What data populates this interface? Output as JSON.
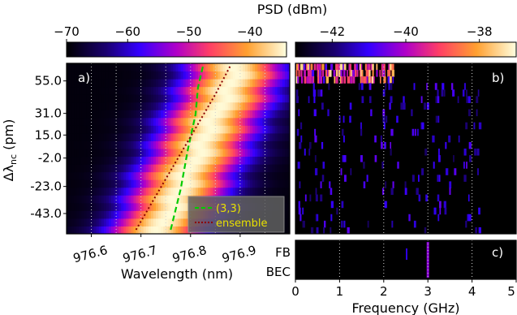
{
  "figure": {
    "colorbar_title": "PSD (dBm)",
    "ylabel": "Δλ_nc (pm)",
    "ylabel_main": "Δλ",
    "ylabel_sub": "nc",
    "ylabel_unit": " (pm)"
  },
  "chart_data": [
    {
      "panel": "a)",
      "type": "heatmap",
      "xlabel": "Wavelength (nm)",
      "ylabel": "Δλ_nc (pm)",
      "x_ticks": [
        "976.6",
        "976.7",
        "976.8",
        "976.9"
      ],
      "x_tick_values": [
        976.6,
        976.7,
        976.8,
        976.9
      ],
      "xlim": [
        976.55,
        977.0
      ],
      "y_ticks": [
        "55.0",
        "31.0",
        "15.0",
        "-2.0",
        "-23.0",
        "-43.0"
      ],
      "y_tick_values": [
        55.0,
        31.0,
        15.0,
        -2.0,
        -23.0,
        -43.0
      ],
      "ylim": [
        -58,
        68
      ],
      "colorbar": {
        "label": "PSD (dBm)",
        "ticks": [
          "−70",
          "−60",
          "−50",
          "−40"
        ],
        "tick_values": [
          -70,
          -60,
          -50,
          -40
        ],
        "range": [
          -70,
          -34
        ],
        "colormap": "plasma"
      },
      "peak_center_nm": {
        "y_values": [
          -55,
          68
        ],
        "x_values": [
          976.74,
          976.9
        ]
      },
      "series": [
        {
          "name": "(3,3)",
          "color": "#00cc00",
          "style": "dashed",
          "x": [
            976.76,
            976.78,
            976.795,
            976.81,
            976.815,
            976.825
          ],
          "y": [
            -55,
            -25,
            5,
            30,
            50,
            66
          ]
        },
        {
          "name": "ensemble",
          "color": "#8b0000",
          "style": "dotted",
          "x": [
            976.69,
            976.73,
            976.77,
            976.81,
            976.85,
            976.88
          ],
          "y": [
            -55,
            -30,
            -5,
            20,
            45,
            66
          ]
        }
      ],
      "legend": {
        "position": "bottom-right",
        "entries": [
          "(3,3)",
          "ensemble"
        ]
      }
    },
    {
      "panel": "b)",
      "type": "heatmap",
      "xlabel": "Frequency (GHz)",
      "x_ticks": [
        "0",
        "1",
        "2",
        "3",
        "4",
        "5"
      ],
      "x_tick_values": [
        0,
        1,
        2,
        3,
        4,
        5
      ],
      "xlim": [
        0,
        5
      ],
      "ylim": [
        -58,
        68
      ],
      "colorbar": {
        "label": "PSD (dBm)",
        "ticks": [
          "−42",
          "−40",
          "−38"
        ],
        "tick_values": [
          -42,
          -40,
          -38
        ],
        "range": [
          -43,
          -37
        ],
        "colormap": "plasma"
      },
      "note": "bright components near top rows (Δλ ≈ 55–68 pm), mostly dark elsewhere"
    },
    {
      "panel": "c)",
      "type": "heatmap",
      "xlabel": "Frequency (GHz)",
      "x_ticks": [
        "0",
        "1",
        "2",
        "3",
        "4",
        "5"
      ],
      "x_tick_values": [
        0,
        1,
        2,
        3,
        4,
        5
      ],
      "xlim": [
        0,
        5
      ],
      "y_ticks": [
        "FB",
        "BEC"
      ],
      "feature": {
        "x_value": 3.0,
        "label": "peak near 3 GHz"
      }
    }
  ],
  "colors": {
    "background": "#000000",
    "grid": "#bbbbbb"
  }
}
